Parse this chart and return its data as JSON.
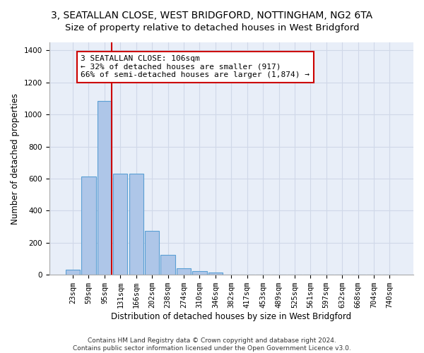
{
  "title": "3, SEATALLAN CLOSE, WEST BRIDGFORD, NOTTINGHAM, NG2 6TA",
  "subtitle": "Size of property relative to detached houses in West Bridgford",
  "xlabel": "Distribution of detached houses by size in West Bridgford",
  "ylabel": "Number of detached properties",
  "bar_categories": [
    "23sqm",
    "59sqm",
    "95sqm",
    "131sqm",
    "166sqm",
    "202sqm",
    "238sqm",
    "274sqm",
    "310sqm",
    "346sqm",
    "382sqm",
    "417sqm",
    "453sqm",
    "489sqm",
    "525sqm",
    "561sqm",
    "597sqm",
    "632sqm",
    "668sqm",
    "704sqm",
    "740sqm"
  ],
  "bar_values": [
    30,
    612,
    1085,
    630,
    630,
    275,
    125,
    42,
    25,
    15,
    0,
    0,
    0,
    0,
    0,
    0,
    0,
    0,
    0,
    0,
    0
  ],
  "bar_color": "#aec6e8",
  "bar_edgecolor": "#5a9fd4",
  "vline_color": "#cc0000",
  "annotation_line1": "3 SEATALLAN CLOSE: 106sqm",
  "annotation_line2": "← 32% of detached houses are smaller (917)",
  "annotation_line3": "66% of semi-detached houses are larger (1,874) →",
  "annotation_box_edgecolor": "#cc0000",
  "annotation_box_facecolor": "#ffffff",
  "ylim": [
    0,
    1450
  ],
  "yticks": [
    0,
    200,
    400,
    600,
    800,
    1000,
    1200,
    1400
  ],
  "grid_color": "#d0d8e8",
  "background_color": "#e8eef8",
  "footer_line1": "Contains HM Land Registry data © Crown copyright and database right 2024.",
  "footer_line2": "Contains public sector information licensed under the Open Government Licence v3.0.",
  "title_fontsize": 10,
  "subtitle_fontsize": 9.5,
  "axis_label_fontsize": 8.5,
  "tick_fontsize": 7.5,
  "annotation_fontsize": 8,
  "footer_fontsize": 6.5
}
